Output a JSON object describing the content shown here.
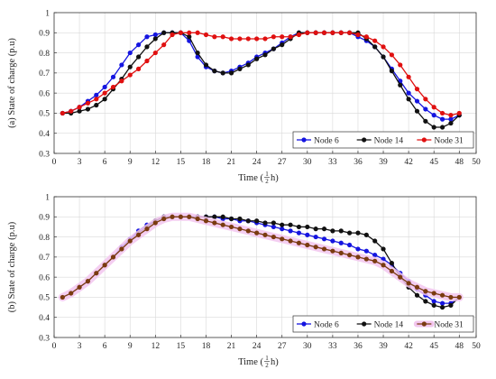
{
  "chart_data": [
    {
      "type": "line",
      "ylabel": "(a) State of charge (p.u)",
      "xlabel": "Time (",
      "xlabel_frac_num": "1",
      "xlabel_frac_den": "2",
      "xlabel_suffix": "h)",
      "xlim": [
        0,
        50
      ],
      "ylim": [
        0.3,
        1.0
      ],
      "xticks": [
        0,
        3,
        6,
        9,
        12,
        15,
        18,
        21,
        24,
        27,
        30,
        33,
        36,
        39,
        42,
        45,
        48,
        50
      ],
      "yticks": [
        0.3,
        0.4,
        0.5,
        0.6,
        0.7,
        0.8,
        0.9,
        1.0
      ],
      "ytick_labels": [
        "0.3",
        "0.4",
        "0.5",
        "0.6",
        "0.7",
        "0.8",
        "0.9",
        "1"
      ],
      "grid": true,
      "legend_position": "bottom-right",
      "x": [
        1,
        2,
        3,
        4,
        5,
        6,
        7,
        8,
        9,
        10,
        11,
        12,
        13,
        14,
        15,
        16,
        17,
        18,
        19,
        20,
        21,
        22,
        23,
        24,
        25,
        26,
        27,
        28,
        29,
        30,
        31,
        32,
        33,
        34,
        35,
        36,
        37,
        38,
        39,
        40,
        41,
        42,
        43,
        44,
        45,
        46,
        47,
        48
      ],
      "series": [
        {
          "name": "Node 6",
          "color": "#1515e0",
          "values": [
            0.5,
            0.51,
            0.53,
            0.56,
            0.59,
            0.63,
            0.68,
            0.74,
            0.8,
            0.84,
            0.88,
            0.89,
            0.9,
            0.9,
            0.9,
            0.86,
            0.78,
            0.73,
            0.71,
            0.7,
            0.71,
            0.73,
            0.75,
            0.78,
            0.8,
            0.82,
            0.85,
            0.88,
            0.9,
            0.9,
            0.9,
            0.9,
            0.9,
            0.9,
            0.9,
            0.88,
            0.86,
            0.83,
            0.78,
            0.72,
            0.66,
            0.6,
            0.56,
            0.52,
            0.49,
            0.47,
            0.47,
            0.49
          ]
        },
        {
          "name": "Node 14",
          "color": "#111111",
          "values": [
            0.5,
            0.5,
            0.51,
            0.52,
            0.54,
            0.57,
            0.62,
            0.67,
            0.73,
            0.78,
            0.83,
            0.87,
            0.9,
            0.9,
            0.9,
            0.88,
            0.8,
            0.74,
            0.71,
            0.7,
            0.7,
            0.72,
            0.74,
            0.77,
            0.79,
            0.82,
            0.84,
            0.87,
            0.9,
            0.9,
            0.9,
            0.9,
            0.9,
            0.9,
            0.9,
            0.9,
            0.87,
            0.83,
            0.78,
            0.71,
            0.64,
            0.57,
            0.51,
            0.46,
            0.43,
            0.43,
            0.45,
            0.49
          ]
        },
        {
          "name": "Node 31",
          "color": "#e01010",
          "values": [
            0.5,
            0.51,
            0.53,
            0.55,
            0.57,
            0.6,
            0.63,
            0.66,
            0.69,
            0.72,
            0.76,
            0.8,
            0.84,
            0.89,
            0.9,
            0.9,
            0.9,
            0.89,
            0.88,
            0.88,
            0.87,
            0.87,
            0.87,
            0.87,
            0.87,
            0.88,
            0.88,
            0.88,
            0.89,
            0.9,
            0.9,
            0.9,
            0.9,
            0.9,
            0.9,
            0.89,
            0.88,
            0.86,
            0.83,
            0.79,
            0.74,
            0.68,
            0.62,
            0.57,
            0.53,
            0.5,
            0.49,
            0.5
          ]
        }
      ]
    },
    {
      "type": "line",
      "ylabel": "(b) State of charge (p.u)",
      "xlabel": "Time (",
      "xlabel_frac_num": "1",
      "xlabel_frac_den": "2",
      "xlabel_suffix": "h)",
      "xlim": [
        0,
        50
      ],
      "ylim": [
        0.3,
        1.0
      ],
      "xticks": [
        0,
        3,
        6,
        9,
        12,
        15,
        18,
        21,
        24,
        27,
        30,
        33,
        36,
        39,
        42,
        45,
        48,
        50
      ],
      "yticks": [
        0.3,
        0.4,
        0.5,
        0.6,
        0.7,
        0.8,
        0.9,
        1.0
      ],
      "ytick_labels": [
        "0.3",
        "0.4",
        "0.5",
        "0.6",
        "0.7",
        "0.8",
        "0.9",
        "1"
      ],
      "grid": true,
      "legend_position": "bottom-right",
      "x": [
        1,
        2,
        3,
        4,
        5,
        6,
        7,
        8,
        9,
        10,
        11,
        12,
        13,
        14,
        15,
        16,
        17,
        18,
        19,
        20,
        21,
        22,
        23,
        24,
        25,
        26,
        27,
        28,
        29,
        30,
        31,
        32,
        33,
        34,
        35,
        36,
        37,
        38,
        39,
        40,
        41,
        42,
        43,
        44,
        45,
        46,
        47,
        48
      ],
      "series": [
        {
          "name": "Node 6",
          "color": "#1515e0",
          "values": [
            0.5,
            0.52,
            0.55,
            0.58,
            0.62,
            0.66,
            0.7,
            0.75,
            0.79,
            0.83,
            0.86,
            0.88,
            0.9,
            0.9,
            0.9,
            0.9,
            0.9,
            0.9,
            0.9,
            0.89,
            0.89,
            0.88,
            0.88,
            0.87,
            0.86,
            0.85,
            0.84,
            0.83,
            0.82,
            0.81,
            0.8,
            0.79,
            0.78,
            0.77,
            0.76,
            0.74,
            0.73,
            0.71,
            0.69,
            0.66,
            0.62,
            0.58,
            0.54,
            0.51,
            0.48,
            0.47,
            0.47,
            0.5
          ]
        },
        {
          "name": "Node 14",
          "color": "#111111",
          "values": [
            0.5,
            0.52,
            0.55,
            0.58,
            0.62,
            0.66,
            0.7,
            0.74,
            0.78,
            0.82,
            0.85,
            0.88,
            0.9,
            0.9,
            0.9,
            0.9,
            0.9,
            0.9,
            0.9,
            0.9,
            0.89,
            0.89,
            0.88,
            0.88,
            0.87,
            0.87,
            0.86,
            0.86,
            0.85,
            0.85,
            0.84,
            0.84,
            0.83,
            0.83,
            0.82,
            0.82,
            0.81,
            0.78,
            0.74,
            0.67,
            0.6,
            0.55,
            0.51,
            0.48,
            0.46,
            0.45,
            0.46,
            0.5
          ]
        },
        {
          "name": "Node 31",
          "color": "#7a3b10",
          "halo": "#f2c6ee",
          "values": [
            0.5,
            0.52,
            0.55,
            0.58,
            0.62,
            0.66,
            0.7,
            0.74,
            0.78,
            0.81,
            0.84,
            0.87,
            0.89,
            0.9,
            0.9,
            0.9,
            0.89,
            0.88,
            0.87,
            0.86,
            0.85,
            0.84,
            0.83,
            0.82,
            0.81,
            0.8,
            0.79,
            0.78,
            0.77,
            0.76,
            0.75,
            0.74,
            0.73,
            0.72,
            0.71,
            0.7,
            0.69,
            0.68,
            0.66,
            0.63,
            0.6,
            0.57,
            0.55,
            0.53,
            0.52,
            0.51,
            0.5,
            0.5
          ]
        }
      ]
    }
  ]
}
